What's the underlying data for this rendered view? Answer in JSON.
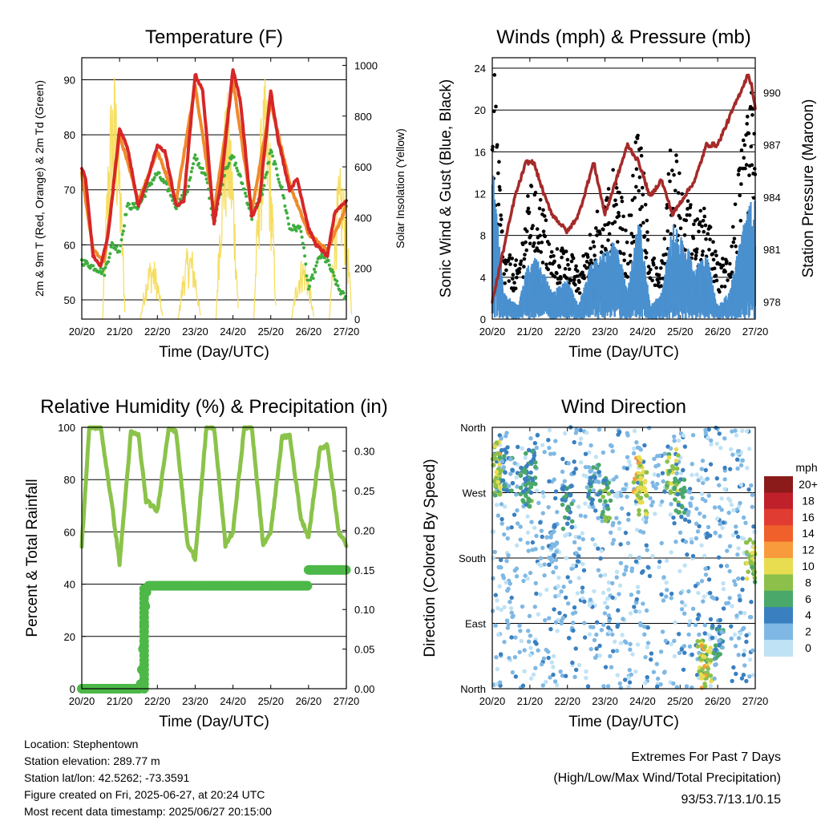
{
  "x_ticks": [
    "20/20",
    "21/20",
    "22/20",
    "23/20",
    "24/20",
    "25/20",
    "26/20",
    "27/20"
  ],
  "x_label": "Time (Day/UTC)",
  "colors": {
    "temp2m": "#d62728",
    "temp9m": "#f08a2b",
    "dewpoint": "#3eae3e",
    "solar": "#f5dc58",
    "wind": "#4a90cf",
    "gust": "#000000",
    "pressure": "#a52a2a",
    "rh": "#8bc34a",
    "precip": "#4db848",
    "extremes": "#c0282b"
  },
  "panels": {
    "temperature": {
      "title": "Temperature (F)",
      "ylabel": "2m & 9m T (Red, Orange) & 2m Td (Green)",
      "ylabel2": "Solar Insolation (Yellow)"
    },
    "winds": {
      "title": "Winds (mph) & Pressure (mb)",
      "ylabel": "Sonic Wind & Gust (Blue, Black)",
      "ylabel2": "Station Pressure (Maroon)"
    },
    "humidity": {
      "title": "Relative Humidity (%) & Precipitation (in)",
      "ylabel": "Percent & Total Rainfall"
    },
    "direction": {
      "title": "Wind Direction",
      "ylabel": "Direction (Colored By Speed)",
      "legend_unit": "mph",
      "legend_labels": [
        "20+",
        "18",
        "16",
        "14",
        "12",
        "10",
        "8",
        "6",
        "4",
        "2",
        "0"
      ],
      "legend_colors": [
        "#8b1a1a",
        "#c0202a",
        "#e03c31",
        "#f0602a",
        "#f89b3c",
        "#e8dc50",
        "#8cc04a",
        "#4aa86a",
        "#3a80c0",
        "#7fb8e4",
        "#bfe2f5"
      ]
    }
  },
  "info": {
    "location": "Location: Stephentown",
    "elevation": "Station elevation: 289.77 m",
    "latlon": "Station lat/lon: 42.5262; -73.3591",
    "created": "Figure created on Fri, 2025-06-27, at 20:24 UTC",
    "latest": "Most recent data timestamp: 2025/06/27 20:15:00"
  },
  "extremes": {
    "title": "Extremes For Past 7 Days",
    "subtitle": "(High/Low/Max Wind/Total Precipitation)",
    "values": "93/53.7/13.1/0.15"
  },
  "chart_data": [
    {
      "type": "line",
      "title": "Temperature (F)",
      "xlabel": "Time (Day/UTC)",
      "ylabel": "2m & 9m T (Red, Orange) & 2m Td (Green)",
      "ylabel2": "Solar Insolation (Yellow)",
      "xlim": [
        0,
        7
      ],
      "ylim": [
        46.5,
        94
      ],
      "ylim2": [
        0,
        1030
      ],
      "yticks": [
        50,
        60,
        70,
        80,
        90
      ],
      "yticks2": [
        0,
        200,
        400,
        600,
        800,
        1000
      ],
      "grid": true,
      "series": [
        {
          "name": "2m T",
          "axis": "left",
          "x": [
            0,
            0.1,
            0.3,
            0.5,
            0.7,
            1.0,
            1.2,
            1.5,
            1.7,
            2.0,
            2.2,
            2.5,
            2.7,
            3.0,
            3.2,
            3.5,
            3.7,
            4.0,
            4.2,
            4.5,
            4.7,
            5.0,
            5.2,
            5.5,
            5.7,
            6.0,
            6.2,
            6.5,
            6.7,
            7.0
          ],
          "y": [
            74,
            72,
            58,
            56,
            62,
            81,
            78,
            67,
            71,
            78,
            77,
            67,
            68,
            91,
            88,
            64,
            72,
            92,
            86,
            65,
            68,
            88,
            79,
            70,
            72,
            63,
            60,
            58,
            66,
            68
          ]
        },
        {
          "name": "9m T",
          "axis": "left",
          "x": [
            0,
            0.3,
            0.6,
            1.0,
            1.5,
            2.0,
            2.5,
            3.0,
            3.5,
            4.0,
            4.5,
            5.0,
            5.5,
            6.0,
            6.5,
            7.0
          ],
          "y": [
            73,
            59,
            57,
            80,
            68,
            77,
            68,
            89,
            66,
            90,
            66,
            86,
            71,
            62,
            59,
            67
          ]
        },
        {
          "name": "2m Td",
          "axis": "left",
          "x": [
            0,
            0.3,
            0.6,
            0.8,
            1.0,
            1.2,
            1.5,
            1.8,
            2.0,
            2.3,
            2.5,
            2.8,
            3.0,
            3.3,
            3.5,
            3.8,
            4.0,
            4.3,
            4.5,
            4.8,
            5.0,
            5.3,
            5.5,
            5.8,
            6.0,
            6.3,
            6.5,
            6.8,
            7.0
          ],
          "y": [
            57,
            56,
            55,
            60,
            59,
            67,
            67,
            71,
            73,
            70,
            67,
            70,
            76,
            72,
            64,
            74,
            76,
            70,
            65,
            70,
            77,
            70,
            63,
            63,
            52,
            58,
            57,
            52,
            50
          ]
        },
        {
          "name": "Solar Insolation",
          "axis": "right",
          "x": [
            0.8,
            1.0,
            1.8,
            2.0,
            2.8,
            3.0,
            3.8,
            4.0,
            4.8,
            5.0,
            5.8,
            6.0,
            6.8
          ],
          "y": [
            1000,
            600,
            250,
            700,
            300,
            960,
            900,
            920,
            950,
            820,
            250,
            300,
            600
          ]
        }
      ]
    },
    {
      "type": "line",
      "title": "Winds (mph) & Pressure (mb)",
      "xlabel": "Time (Day/UTC)",
      "ylabel": "Sonic Wind & Gust (Blue, Black)",
      "ylabel2": "Station Pressure (Maroon)",
      "xlim": [
        0,
        7
      ],
      "ylim": [
        0,
        25
      ],
      "ylim2": [
        977.0,
        992.0
      ],
      "yticks": [
        0,
        4,
        8,
        12,
        16,
        20,
        24
      ],
      "yticks2": [
        978,
        981,
        984,
        987,
        990
      ],
      "grid": true,
      "series": [
        {
          "name": "Gust",
          "axis": "left",
          "type": "scatter",
          "x": [
            0.05,
            0.3,
            0.7,
            1.0,
            1.3,
            1.6,
            2.0,
            2.3,
            2.6,
            3.0,
            3.3,
            3.6,
            3.9,
            4.2,
            4.5,
            4.8,
            5.1,
            5.4,
            5.7,
            6.0,
            6.3,
            6.6,
            6.9
          ],
          "y": [
            22,
            6,
            5,
            12,
            11,
            6,
            7,
            4,
            8,
            11,
            14,
            7,
            20,
            5,
            6,
            17,
            12,
            9,
            10,
            5,
            6,
            14,
            20
          ]
        },
        {
          "name": "Sonic Wind",
          "axis": "left",
          "x": [
            0,
            0.3,
            0.7,
            1.0,
            1.3,
            1.6,
            2.0,
            2.3,
            2.6,
            3.0,
            3.3,
            3.6,
            3.9,
            4.2,
            4.5,
            4.8,
            5.1,
            5.4,
            5.7,
            6.0,
            6.3,
            6.6,
            6.9
          ],
          "y": [
            12,
            2,
            1,
            5,
            4,
            2,
            3,
            1,
            4,
            5,
            6,
            2,
            8,
            1,
            2,
            7,
            6,
            4,
            5,
            1,
            2,
            6,
            9
          ]
        },
        {
          "name": "Station Pressure",
          "axis": "right",
          "x": [
            0,
            0.3,
            0.6,
            0.9,
            1.1,
            1.4,
            1.6,
            2.0,
            2.3,
            2.7,
            3.0,
            3.3,
            3.6,
            3.9,
            4.2,
            4.5,
            4.8,
            5.1,
            5.4,
            5.7,
            6.0,
            6.2,
            6.4,
            6.6,
            6.8,
            6.9,
            7.0
          ],
          "y": [
            978,
            981,
            984,
            986,
            986,
            984,
            983,
            982,
            983,
            986,
            983,
            985,
            987,
            986,
            984,
            985,
            983,
            984,
            985,
            987,
            987,
            988,
            989,
            990,
            991,
            990.5,
            989
          ]
        }
      ]
    },
    {
      "type": "line",
      "title": "Relative Humidity (%) & Precipitation (in)",
      "xlabel": "Time (Day/UTC)",
      "ylabel": "Percent & Total Rainfall",
      "xlim": [
        0,
        7
      ],
      "ylim": [
        0,
        100
      ],
      "ylim2": [
        0,
        0.33
      ],
      "yticks": [
        0,
        20,
        40,
        60,
        80,
        100
      ],
      "yticks2": [
        0.0,
        0.05,
        0.1,
        0.15,
        0.2,
        0.25,
        0.3
      ],
      "grid": true,
      "series": [
        {
          "name": "RH",
          "axis": "left",
          "x": [
            0,
            0.2,
            0.5,
            0.8,
            1.0,
            1.3,
            1.5,
            1.7,
            2.0,
            2.3,
            2.5,
            2.8,
            3.0,
            3.3,
            3.5,
            3.8,
            4.0,
            4.3,
            4.5,
            4.8,
            5.0,
            5.3,
            5.5,
            5.8,
            6.0,
            6.3,
            6.5,
            6.8,
            7.0
          ],
          "y": [
            55,
            100,
            100,
            70,
            48,
            98,
            97,
            72,
            68,
            100,
            98,
            55,
            50,
            100,
            100,
            55,
            60,
            100,
            100,
            55,
            60,
            96,
            97,
            65,
            58,
            92,
            93,
            60,
            55
          ]
        },
        {
          "name": "Total Precipitation",
          "axis": "right",
          "type": "step",
          "x": [
            0,
            1.55,
            1.6,
            1.65,
            1.7,
            1.75,
            6.0,
            6.05,
            7.0
          ],
          "y": [
            0.0,
            0.0,
            0.03,
            0.08,
            0.12,
            0.13,
            0.13,
            0.15,
            0.15
          ]
        }
      ]
    },
    {
      "type": "scatter",
      "title": "Wind Direction",
      "xlabel": "Time (Day/UTC)",
      "ylabel": "Direction (Colored By Speed)",
      "xlim": [
        0,
        7
      ],
      "ylim": [
        0,
        360
      ],
      "yticks": [
        0,
        90,
        180,
        270,
        360
      ],
      "yticklabels": [
        "North",
        "East",
        "South",
        "West",
        "North"
      ],
      "colorbar_unit": "mph",
      "colorbar_labels": [
        "0",
        "2",
        "4",
        "6",
        "8",
        "10",
        "12",
        "14",
        "16",
        "18",
        "20+"
      ],
      "grid": true,
      "points": [
        {
          "x": 0.05,
          "dir": 310,
          "speed": 10
        },
        {
          "x": 0.1,
          "dir": 290,
          "speed": 8
        },
        {
          "x": 0.4,
          "dir": 300,
          "speed": 4
        },
        {
          "x": 0.9,
          "dir": 280,
          "speed": 6
        },
        {
          "x": 1.0,
          "dir": 300,
          "speed": 5
        },
        {
          "x": 1.6,
          "dir": 200,
          "speed": 3
        },
        {
          "x": 2.0,
          "dir": 250,
          "speed": 5
        },
        {
          "x": 2.7,
          "dir": 280,
          "speed": 4
        },
        {
          "x": 3.0,
          "dir": 260,
          "speed": 6
        },
        {
          "x": 3.9,
          "dir": 290,
          "speed": 10
        },
        {
          "x": 4.0,
          "dir": 270,
          "speed": 9
        },
        {
          "x": 4.8,
          "dir": 300,
          "speed": 8
        },
        {
          "x": 5.0,
          "dir": 260,
          "speed": 6
        },
        {
          "x": 5.6,
          "dir": 40,
          "speed": 8
        },
        {
          "x": 5.7,
          "dir": 30,
          "speed": 10
        },
        {
          "x": 6.0,
          "dir": 60,
          "speed": 4
        },
        {
          "x": 6.9,
          "dir": 180,
          "speed": 9
        },
        {
          "x": 7.0,
          "dir": 170,
          "speed": 8
        }
      ]
    }
  ]
}
